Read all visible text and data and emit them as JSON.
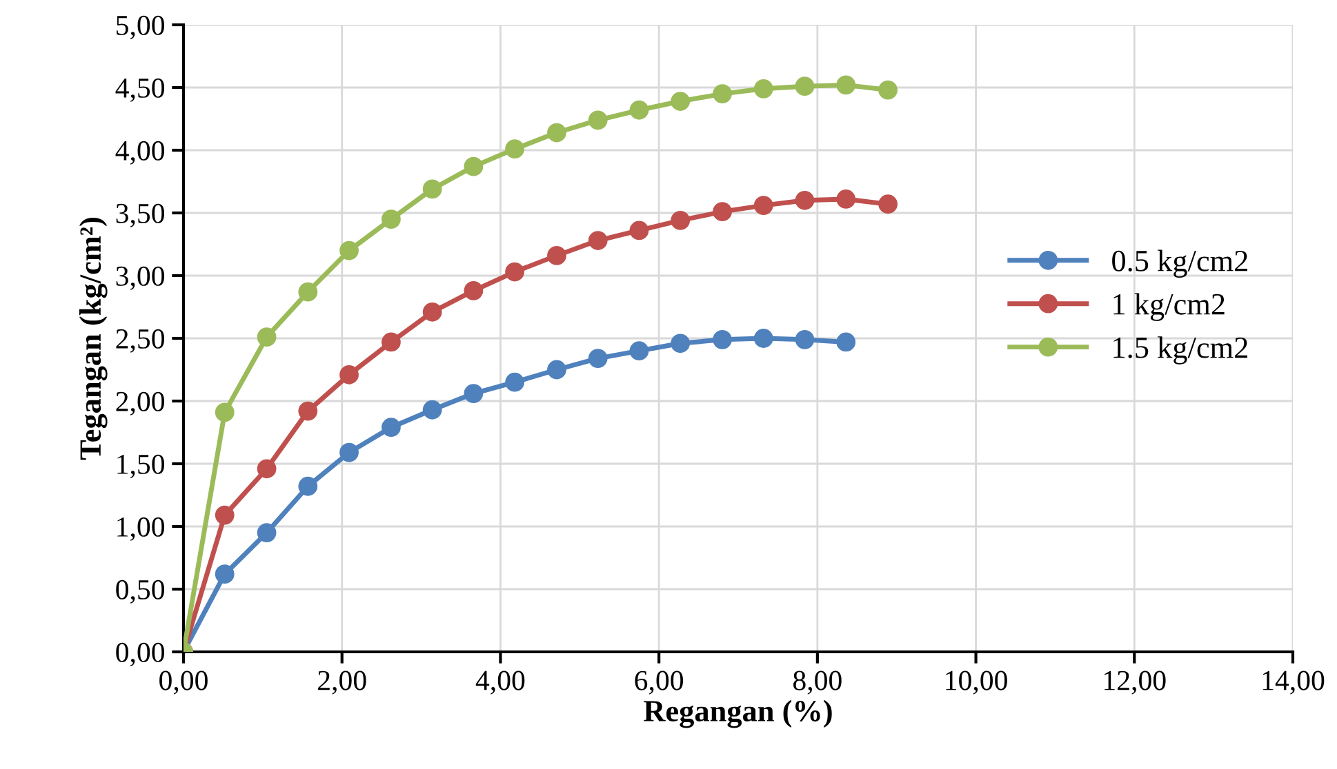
{
  "chart_data": {
    "type": "line",
    "xlabel": "Regangan (%)",
    "ylabel": "Tegangan (kg/cm²)",
    "xlim": [
      0,
      14
    ],
    "xticks": [
      {
        "value": 0,
        "label": "0,00"
      },
      {
        "value": 2,
        "label": "2,00"
      },
      {
        "value": 4,
        "label": "4,00"
      },
      {
        "value": 6,
        "label": "6,00"
      },
      {
        "value": 8,
        "label": "8,00"
      },
      {
        "value": 10,
        "label": "10,00"
      },
      {
        "value": 12,
        "label": "12,00"
      },
      {
        "value": 14,
        "label": "14,00"
      }
    ],
    "ylim": [
      0,
      5
    ],
    "yticks": [
      {
        "value": 0,
        "label": "0,00"
      },
      {
        "value": 0.5,
        "label": "0,50"
      },
      {
        "value": 1,
        "label": "1,00"
      },
      {
        "value": 1.5,
        "label": "1,50"
      },
      {
        "value": 2,
        "label": "2,00"
      },
      {
        "value": 2.5,
        "label": "2,50"
      },
      {
        "value": 3,
        "label": "3,00"
      },
      {
        "value": 3.5,
        "label": "3,50"
      },
      {
        "value": 4,
        "label": "4,00"
      },
      {
        "value": 4.5,
        "label": "4,50"
      },
      {
        "value": 5,
        "label": "5,00"
      }
    ],
    "grid": true,
    "legend": "right",
    "marker": "circle",
    "line_style": "solid",
    "series": [
      {
        "name": "0.5 kg/cm2",
        "color": "#4f81bd",
        "x": [
          0,
          0.52,
          1.05,
          1.57,
          2.09,
          2.62,
          3.14,
          3.66,
          4.18,
          4.71,
          5.23,
          5.75,
          6.27,
          6.8,
          7.32,
          7.84,
          8.36
        ],
        "values": [
          0,
          0.62,
          0.95,
          1.32,
          1.59,
          1.79,
          1.93,
          2.06,
          2.15,
          2.25,
          2.34,
          2.4,
          2.46,
          2.49,
          2.5,
          2.49,
          2.47
        ]
      },
      {
        "name": "1 kg/cm2",
        "color": "#c0504d",
        "x": [
          0,
          0.52,
          1.05,
          1.57,
          2.09,
          2.62,
          3.14,
          3.66,
          4.18,
          4.71,
          5.23,
          5.75,
          6.27,
          6.8,
          7.32,
          7.84,
          8.36,
          8.89
        ],
        "values": [
          0,
          1.09,
          1.46,
          1.92,
          2.21,
          2.47,
          2.71,
          2.88,
          3.03,
          3.16,
          3.28,
          3.36,
          3.44,
          3.51,
          3.56,
          3.6,
          3.61,
          3.57
        ]
      },
      {
        "name": "1.5 kg/cm2",
        "color": "#9bbb59",
        "x": [
          0,
          0.52,
          1.05,
          1.57,
          2.09,
          2.62,
          3.14,
          3.66,
          4.18,
          4.71,
          5.23,
          5.75,
          6.27,
          6.8,
          7.32,
          7.84,
          8.36,
          8.89
        ],
        "values": [
          0,
          1.91,
          2.51,
          2.87,
          3.2,
          3.45,
          3.69,
          3.87,
          4.01,
          4.14,
          4.24,
          4.32,
          4.39,
          4.45,
          4.49,
          4.51,
          4.52,
          4.48
        ]
      }
    ]
  }
}
